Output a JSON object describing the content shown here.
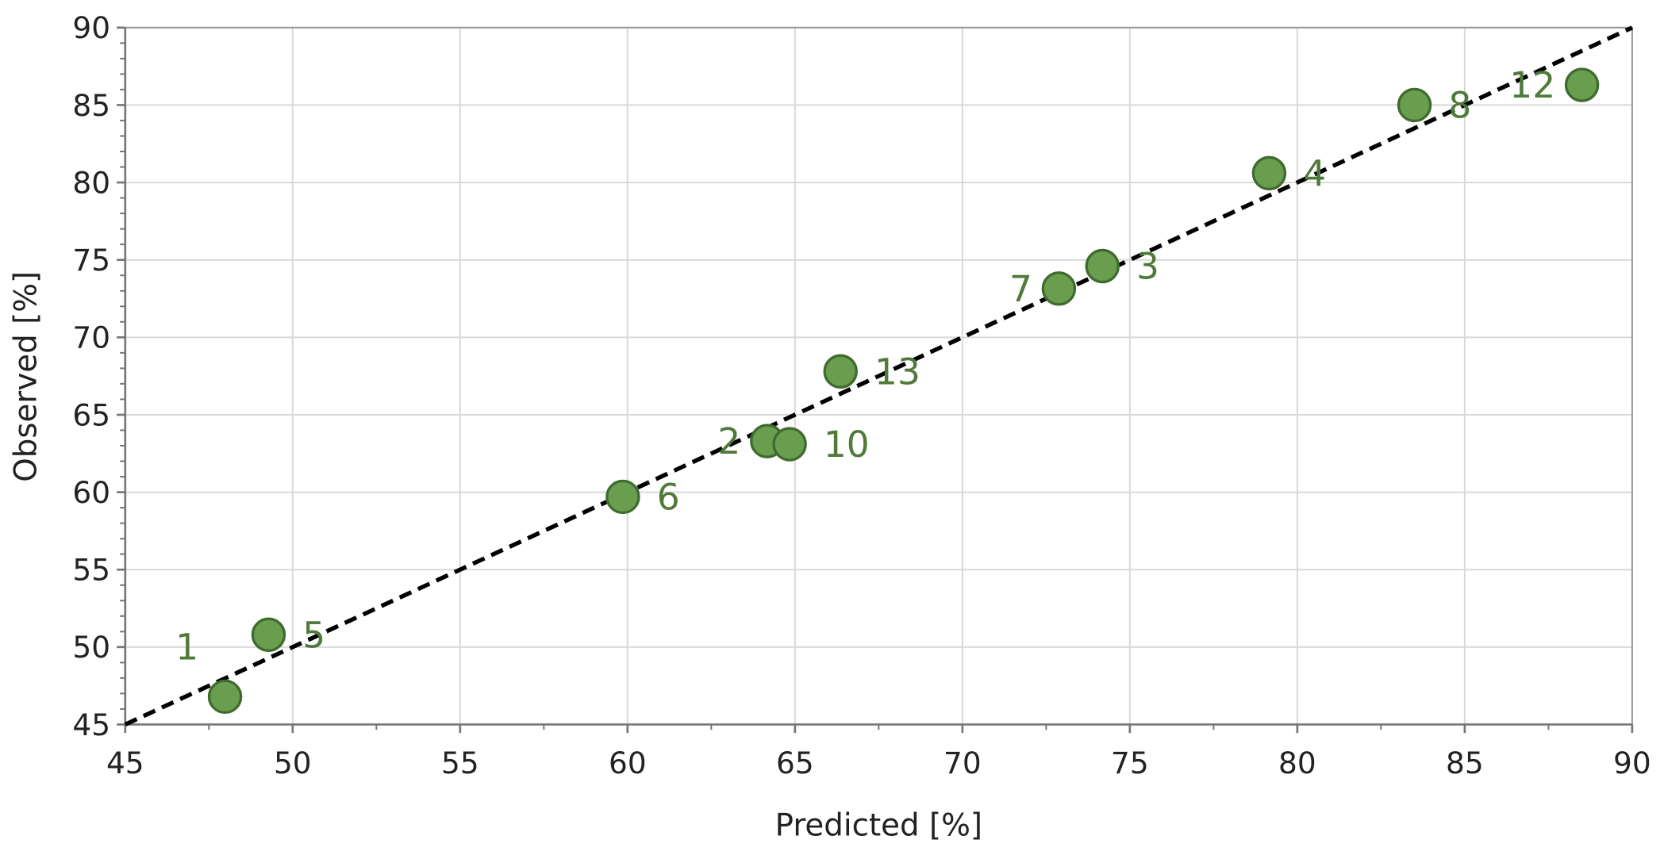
{
  "chart_data": {
    "type": "scatter",
    "x_label": "Predicted [%]",
    "y_label": "Observed [%]",
    "series": [
      {
        "color": "#6a9e4f",
        "labels": [
          "1",
          "5",
          "6",
          "2",
          "10",
          "13",
          "7",
          "3",
          "4",
          "8",
          "12"
        ],
        "x": [
          47.98,
          49.28,
          59.86,
          64.17,
          64.84,
          66.36,
          72.88,
          74.18,
          79.16,
          83.5,
          88.5
        ],
        "values": [
          46.8,
          50.8,
          59.7,
          63.3,
          63.1,
          67.8,
          73.15,
          74.6,
          80.6,
          85.0,
          86.3
        ]
      }
    ],
    "xlim": [
      45,
      90
    ],
    "ylim": [
      45,
      90
    ],
    "xticks": [
      45,
      50,
      55,
      60,
      65,
      70,
      75,
      80,
      85,
      90
    ],
    "yticks": [
      45,
      50,
      55,
      60,
      65,
      70,
      75,
      80,
      85,
      90
    ],
    "grid": true,
    "identity_line": true
  }
}
